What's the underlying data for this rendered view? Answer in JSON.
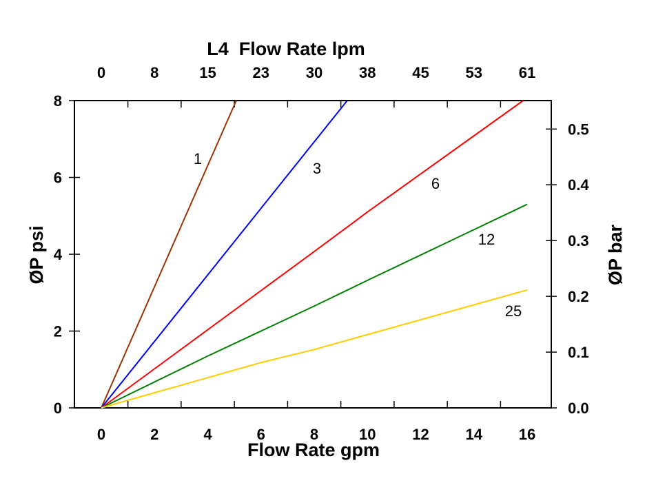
{
  "chart_data": {
    "type": "line",
    "title": "L4  Flow Rate lpm",
    "xlabel": "Flow Rate gpm",
    "ylabel": "ØP psi",
    "y2label": "ØP bar",
    "xlim": [
      0,
      16
    ],
    "ylim": [
      0,
      8
    ],
    "y2lim": [
      0,
      0.551
    ],
    "x_ticks": [
      "0",
      "2",
      "4",
      "6",
      "8",
      "10",
      "12",
      "14",
      "16"
    ],
    "x2_ticks": [
      "0",
      "8",
      "15",
      "23",
      "30",
      "38",
      "45",
      "53",
      "61"
    ],
    "y_ticks": [
      "0",
      "2",
      "4",
      "6",
      "8"
    ],
    "y2_ticks": [
      "0.0",
      "0.1",
      "0.2",
      "0.3",
      "0.4",
      "0.5"
    ],
    "grid": false,
    "series": [
      {
        "name": "1",
        "color": "#993300",
        "points": [
          [
            0,
            0
          ],
          [
            5.07,
            8
          ]
        ]
      },
      {
        "name": "3",
        "color": "#0000ff",
        "points": [
          [
            0,
            0
          ],
          [
            9.24,
            8
          ]
        ]
      },
      {
        "name": "6",
        "color": "#ff0000",
        "points": [
          [
            0,
            0
          ],
          [
            8,
            4.07
          ],
          [
            10,
            5.1
          ],
          [
            15.85,
            8
          ]
        ]
      },
      {
        "name": "12",
        "color": "#008000",
        "points": [
          [
            0,
            0
          ],
          [
            4,
            1.35
          ],
          [
            8,
            2.65
          ],
          [
            10,
            3.32
          ],
          [
            16,
            5.3
          ]
        ]
      },
      {
        "name": "25",
        "color": "#ffcc00",
        "points": [
          [
            0,
            0
          ],
          [
            6,
            1.18
          ],
          [
            8,
            1.52
          ],
          [
            16,
            3.07
          ]
        ]
      }
    ]
  }
}
